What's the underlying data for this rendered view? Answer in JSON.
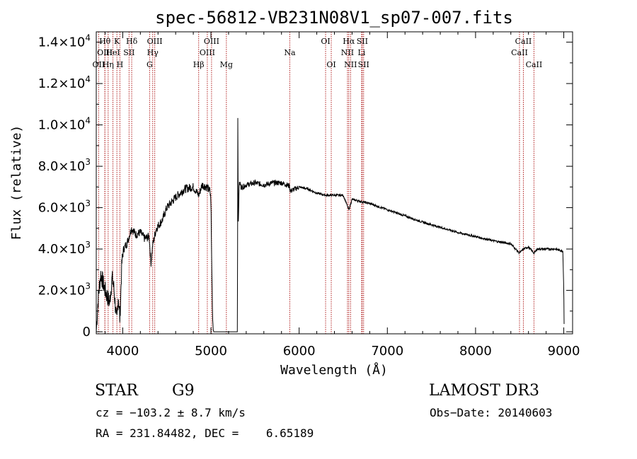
{
  "chart_data": {
    "type": "line",
    "title": "spec-56812-VB231N08V1_sp07-007.fits",
    "xlabel": "Wavelength (Å)",
    "ylabel": "Flux (relative)",
    "xlim": [
      3700,
      9100
    ],
    "ylim": [
      -100,
      14500
    ],
    "x_ticks": [
      {
        "value": 4000,
        "label": "4000"
      },
      {
        "value": 5000,
        "label": "5000"
      },
      {
        "value": 6000,
        "label": "6000"
      },
      {
        "value": 7000,
        "label": "7000"
      },
      {
        "value": 8000,
        "label": "8000"
      },
      {
        "value": 9000,
        "label": "9000"
      }
    ],
    "y_ticks": [
      {
        "value": 0,
        "mantissa": "0",
        "exp": ""
      },
      {
        "value": 2000,
        "mantissa": "2.0×10",
        "exp": "3"
      },
      {
        "value": 4000,
        "mantissa": "4.0×10",
        "exp": "3"
      },
      {
        "value": 6000,
        "mantissa": "6.0×10",
        "exp": "3"
      },
      {
        "value": 8000,
        "mantissa": "8.0×10",
        "exp": "3"
      },
      {
        "value": 10000,
        "mantissa": "1.0×10",
        "exp": "4"
      },
      {
        "value": 12000,
        "mantissa": "1.2×10",
        "exp": "4"
      },
      {
        "value": 14000,
        "mantissa": "1.4×10",
        "exp": "4"
      }
    ],
    "spectrum_anchors": {
      "wavelength": [
        3700,
        3720,
        3750,
        3800,
        3850,
        3880,
        3900,
        3933,
        3950,
        3968,
        3990,
        4010,
        4050,
        4100,
        4150,
        4200,
        4250,
        4300,
        4320,
        4340,
        4380,
        4450,
        4500,
        4600,
        4700,
        4800,
        4861,
        4900,
        4950,
        4990,
        5000,
        5010,
        5020,
        5030,
        5300,
        5305,
        5310,
        5320,
        5330,
        5340,
        5360,
        5400,
        5500,
        5600,
        5700,
        5800,
        5890,
        5900,
        6000,
        6100,
        6200,
        6300,
        6400,
        6500,
        6563,
        6600,
        6700,
        6800,
        7000,
        7200,
        7400,
        7600,
        7800,
        8000,
        8200,
        8400,
        8498,
        8542,
        8600,
        8662,
        8700,
        8800,
        8900,
        8990,
        9000,
        9005
      ],
      "flux": [
        0,
        1500,
        2800,
        2000,
        1400,
        2600,
        2100,
        400,
        1800,
        600,
        3300,
        4000,
        4300,
        5000,
        4700,
        4800,
        4500,
        4600,
        3300,
        4200,
        5000,
        5400,
        6000,
        6500,
        6900,
        7000,
        6600,
        7100,
        7000,
        6800,
        6300,
        3000,
        600,
        0,
        0,
        10400,
        5000,
        7100,
        7200,
        7000,
        7000,
        7100,
        7200,
        7100,
        7200,
        7200,
        7050,
        6800,
        7000,
        6900,
        6700,
        6600,
        6600,
        6600,
        5900,
        6400,
        6300,
        6200,
        5900,
        5600,
        5300,
        5050,
        4800,
        4600,
        4400,
        4250,
        3800,
        4000,
        4100,
        3800,
        4000,
        4000,
        4000,
        3900,
        2000,
        0
      ],
      "units": "relative flux"
    },
    "lines": [
      {
        "label": "OII",
        "wavelength": 3727,
        "row": 3
      },
      {
        "label": "Hθ",
        "wavelength": 3798,
        "row": 1
      },
      {
        "label": "OIII",
        "wavelength": 3798,
        "row": 2
      },
      {
        "label": "Hη",
        "wavelength": 3835,
        "row": 3
      },
      {
        "label": "HeI",
        "wavelength": 3889,
        "row": 2
      },
      {
        "label": "K",
        "wavelength": 3934,
        "row": 1
      },
      {
        "label": "H",
        "wavelength": 3968,
        "row": 3
      },
      {
        "label": "SII",
        "wavelength": 4072,
        "row": 2
      },
      {
        "label": "Hδ",
        "wavelength": 4102,
        "row": 1
      },
      {
        "label": "G",
        "wavelength": 4305,
        "row": 3
      },
      {
        "label": "Hγ",
        "wavelength": 4340,
        "row": 2
      },
      {
        "label": "OIII",
        "wavelength": 4363,
        "row": 1
      },
      {
        "label": "Hβ",
        "wavelength": 4861,
        "row": 3
      },
      {
        "label": "OIII",
        "wavelength": 4959,
        "row": 2
      },
      {
        "label": "OIII",
        "wavelength": 5007,
        "row": 1
      },
      {
        "label": "Mg",
        "wavelength": 5175,
        "row": 3
      },
      {
        "label": "Na",
        "wavelength": 5894,
        "row": 2
      },
      {
        "label": "OI",
        "wavelength": 6300,
        "row": 1
      },
      {
        "label": "OI",
        "wavelength": 6364,
        "row": 3
      },
      {
        "label": "NII",
        "wavelength": 6548,
        "row": 2
      },
      {
        "label": "Hα",
        "wavelength": 6563,
        "row": 1
      },
      {
        "label": "NII",
        "wavelength": 6583,
        "row": 3
      },
      {
        "label": "SII",
        "wavelength": 6716,
        "row": 1
      },
      {
        "label": "Li",
        "wavelength": 6708,
        "row": 2
      },
      {
        "label": "SII",
        "wavelength": 6731,
        "row": 3
      },
      {
        "label": "CaII",
        "wavelength": 8498,
        "row": 2
      },
      {
        "label": "CaII",
        "wavelength": 8542,
        "row": 1
      },
      {
        "label": "CaII",
        "wavelength": 8662,
        "row": 3
      }
    ],
    "colors": {
      "spectrum": "#000000",
      "lines": "#b22222",
      "axes": "#000000"
    }
  },
  "info": {
    "object_class": "STAR",
    "subclass": "G9",
    "survey": "LAMOST DR3",
    "redshift": "cz = −103.2 ± 8.7 km/s",
    "obs_date": "Obs−Date: 20140603",
    "coords": "RA = 231.84482, DEC =    6.65189"
  }
}
